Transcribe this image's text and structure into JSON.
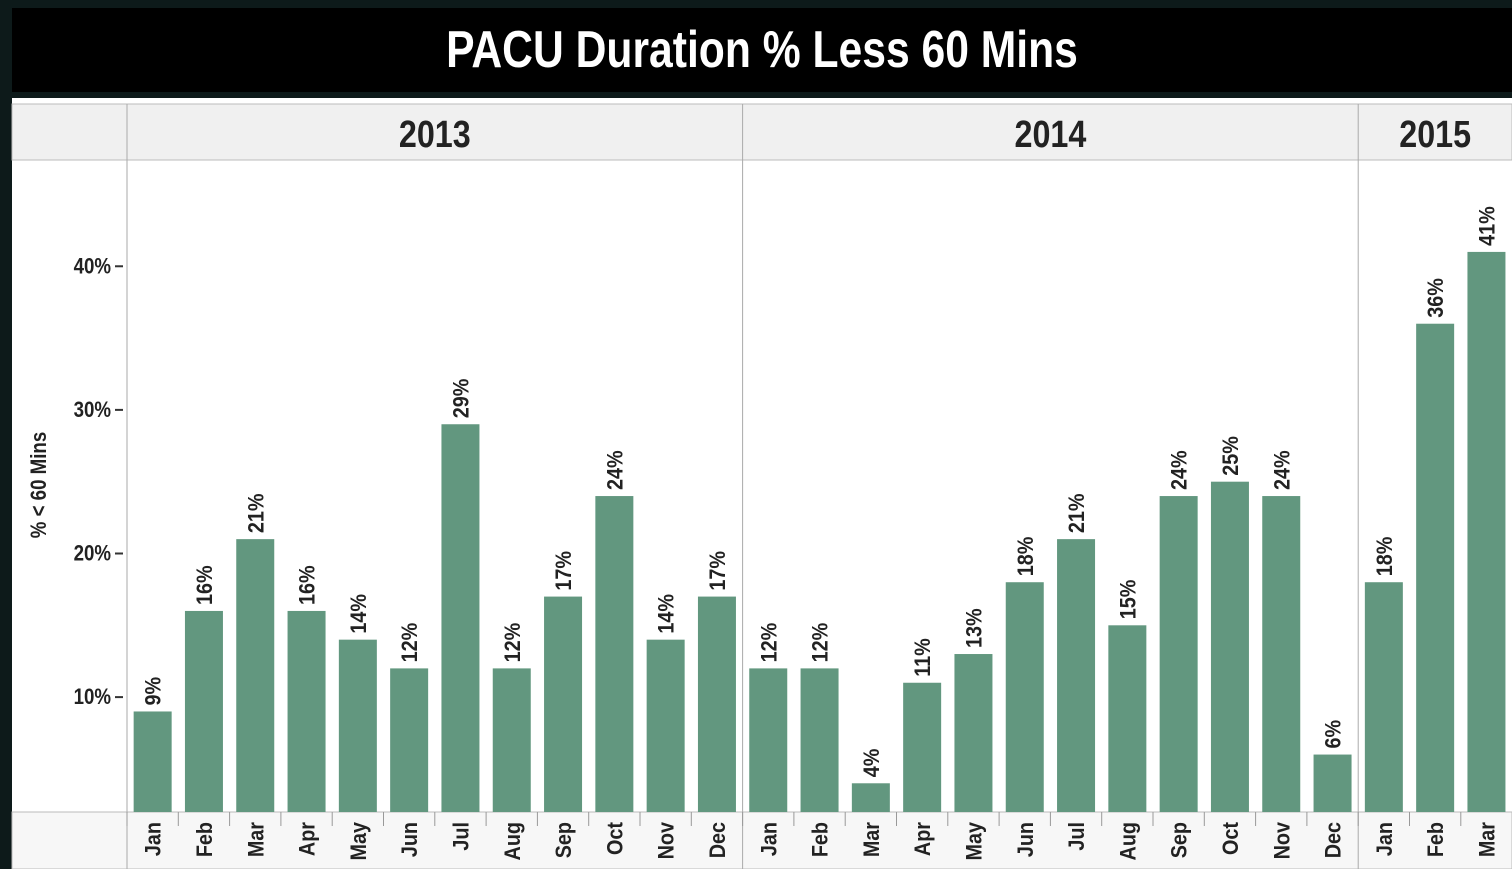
{
  "chart_data": {
    "type": "bar",
    "title": "PACU Duration % Less 60 Mins",
    "y_label": "% < 60 Mins",
    "color": "#62977f",
    "ylim": [
      2,
      47.4
    ],
    "yticks": [
      {
        "value": 10,
        "label": "10%"
      },
      {
        "value": 20,
        "label": "20%"
      },
      {
        "value": 30,
        "label": "30%"
      },
      {
        "value": 40,
        "label": "40%"
      }
    ],
    "panels": [
      {
        "title": "2013",
        "categories": [
          "Jan",
          "Feb",
          "Mar",
          "Apr",
          "May",
          "Jun",
          "Jul",
          "Aug",
          "Sep",
          "Oct",
          "Nov",
          "Dec"
        ],
        "values": [
          9,
          16,
          21,
          16,
          14,
          12,
          29,
          12,
          17,
          24,
          14,
          17
        ],
        "value_labels": [
          "9%",
          "16%",
          "21%",
          "16%",
          "14%",
          "12%",
          "29%",
          "12%",
          "17%",
          "24%",
          "14%",
          "17%"
        ]
      },
      {
        "title": "2014",
        "categories": [
          "Jan",
          "Feb",
          "Mar",
          "Apr",
          "May",
          "Jun",
          "Jul",
          "Aug",
          "Sep",
          "Oct",
          "Nov",
          "Dec"
        ],
        "values": [
          12,
          12,
          4,
          11,
          13,
          18,
          21,
          15,
          24,
          25,
          24,
          6
        ],
        "value_labels": [
          "12%",
          "12%",
          "4%",
          "11%",
          "13%",
          "18%",
          "21%",
          "15%",
          "24%",
          "25%",
          "24%",
          "6%"
        ]
      },
      {
        "title": "2015",
        "categories": [
          "Jan",
          "Feb",
          "Mar"
        ],
        "values": [
          18,
          36,
          41
        ],
        "value_labels": [
          "18%",
          "36%",
          "41%"
        ]
      }
    ]
  }
}
